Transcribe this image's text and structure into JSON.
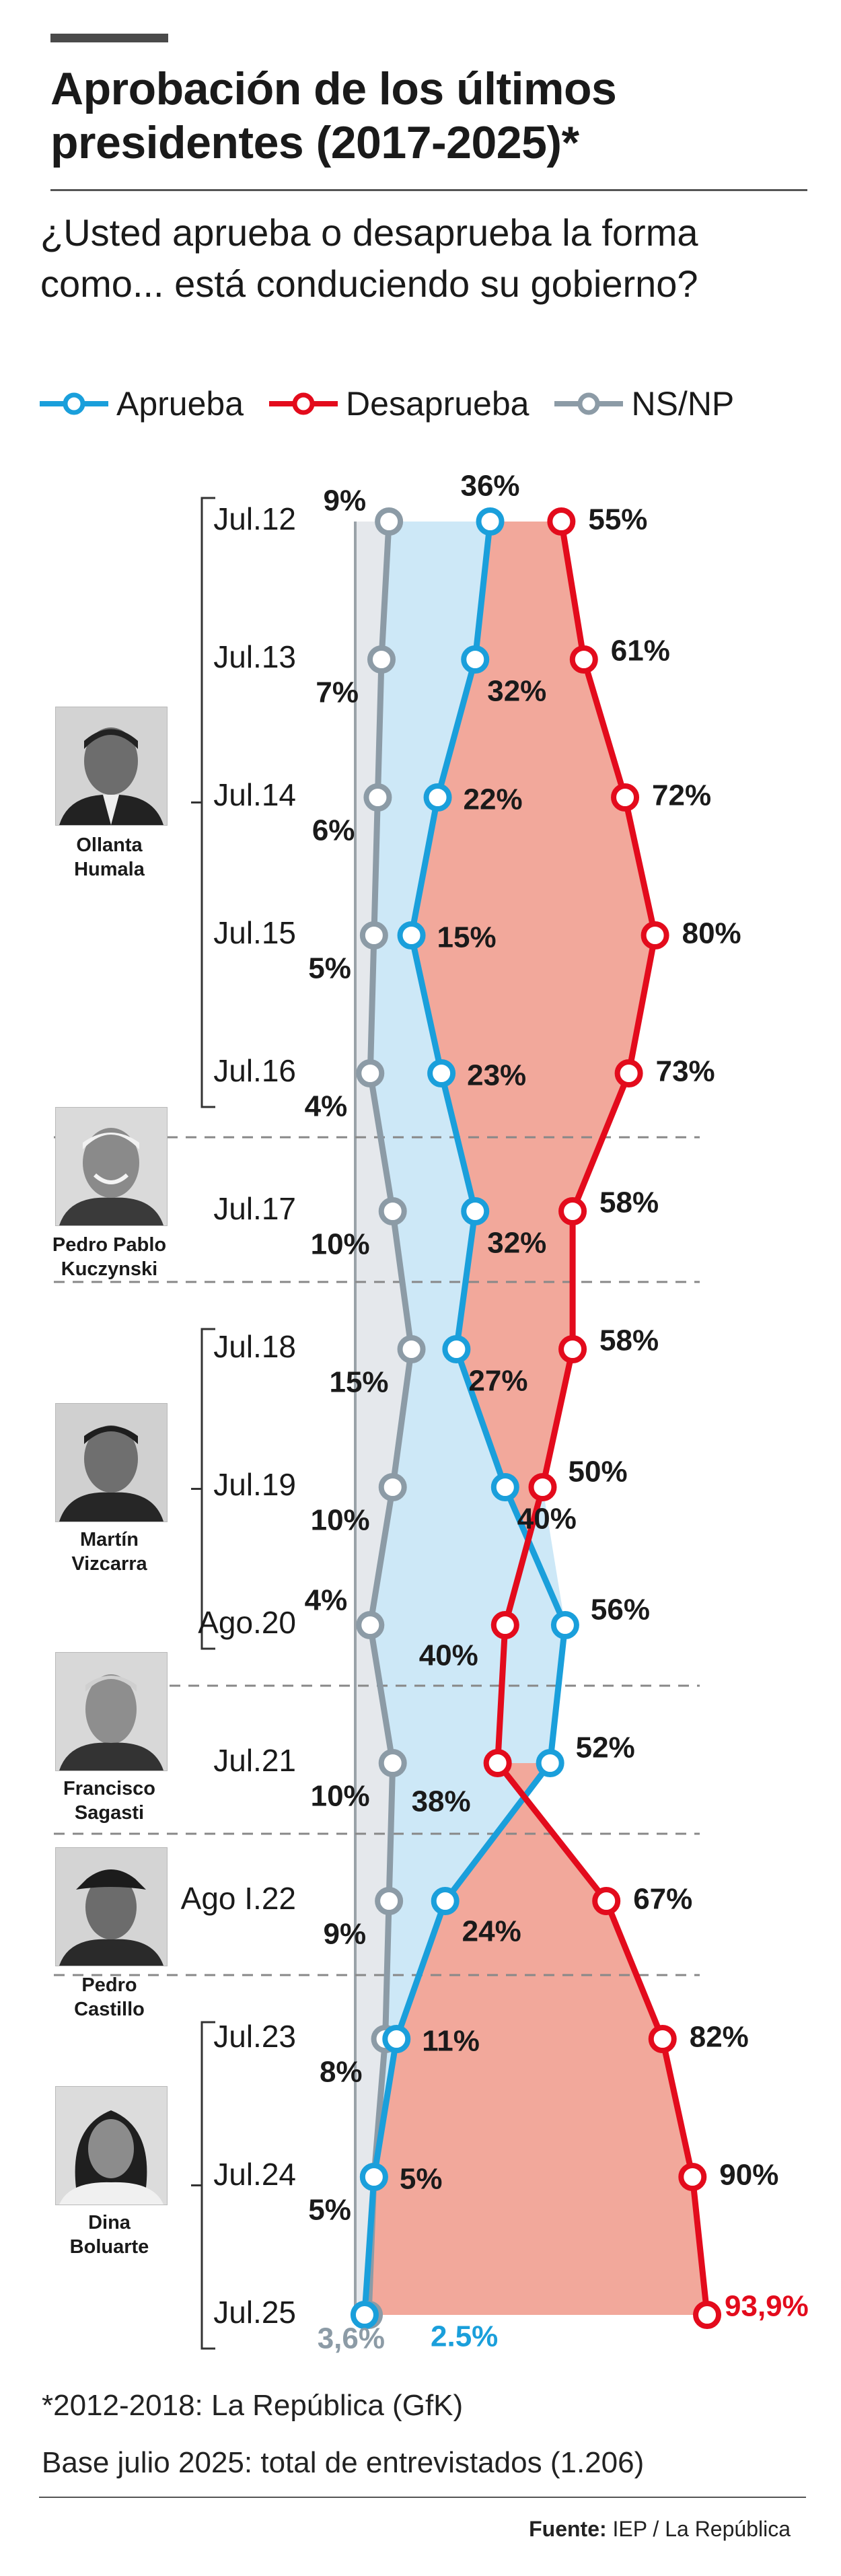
{
  "title_line1": "Aprobación de los últimos",
  "title_line2": "presidentes (2017-2025)*",
  "question_line1": "¿Usted aprueba o desaprueba la forma",
  "question_line2": "como... está conduciendo su gobierno?",
  "legend": {
    "approve": "Aprueba",
    "disapprove": "Desaprueba",
    "nsnp": "NS/NP"
  },
  "presidents": [
    {
      "line1": "Ollanta",
      "line2": "Humala"
    },
    {
      "line1": "Pedro Pablo",
      "line2": "Kuczynski"
    },
    {
      "line1": "Martín",
      "line2": "Vizcarra"
    },
    {
      "line1": "Francisco",
      "line2": "Sagasti"
    },
    {
      "line1": "Pedro",
      "line2": "Castillo"
    },
    {
      "line1": "Dina",
      "line2": "Boluarte"
    }
  ],
  "footnote1": "*2012-2018: La República (GfK)",
  "footnote2": "Base julio 2025: total de entrevistados (1.206)",
  "source_label": "Fuente:",
  "source_value": "IEP / La República",
  "colors": {
    "approve": "#1a9fdb",
    "disapprove": "#e30b1c",
    "nsnp": "#8c9ba6",
    "approve_fill": "#cde8f7",
    "disapprove_fill": "#f2a89b",
    "nsnp_fill": "#e5e8ec"
  },
  "chart_data": {
    "type": "line",
    "categories": [
      "Jul.12",
      "Jul.13",
      "Jul.14",
      "Jul.15",
      "Jul.16",
      "Jul.17",
      "Jul.18",
      "Jul.19",
      "Ago.20",
      "Jul.21",
      "Ago I.22",
      "Jul.23",
      "Jul.24",
      "Jul.25"
    ],
    "series": [
      {
        "name": "Aprueba",
        "values": [
          36,
          32,
          22,
          15,
          23,
          32,
          27,
          40,
          56,
          52,
          24,
          11,
          5,
          2.5
        ],
        "labels": [
          "36%",
          "32%",
          "22%",
          "15%",
          "23%",
          "32%",
          "27%",
          "40%",
          "56%",
          "52%",
          "24%",
          "11%",
          "5%",
          "2.5%"
        ]
      },
      {
        "name": "Desaprueba",
        "values": [
          55,
          61,
          72,
          80,
          73,
          58,
          58,
          50,
          40,
          38,
          67,
          82,
          90,
          93.9
        ],
        "labels": [
          "55%",
          "61%",
          "72%",
          "80%",
          "73%",
          "58%",
          "58%",
          "50%",
          "40%",
          "38%",
          "67%",
          "82%",
          "90%",
          "93,9%"
        ]
      },
      {
        "name": "NS/NP",
        "values": [
          9,
          7,
          6,
          5,
          4,
          10,
          15,
          10,
          4,
          10,
          9,
          8,
          5,
          3.6
        ],
        "labels": [
          "9%",
          "7%",
          "6%",
          "5%",
          "4%",
          "10%",
          "15%",
          "10%",
          "4%",
          "10%",
          "9%",
          "8%",
          "5%",
          "3,6%"
        ]
      }
    ],
    "xlim": [
      0,
      100
    ],
    "legend_position": "top"
  }
}
